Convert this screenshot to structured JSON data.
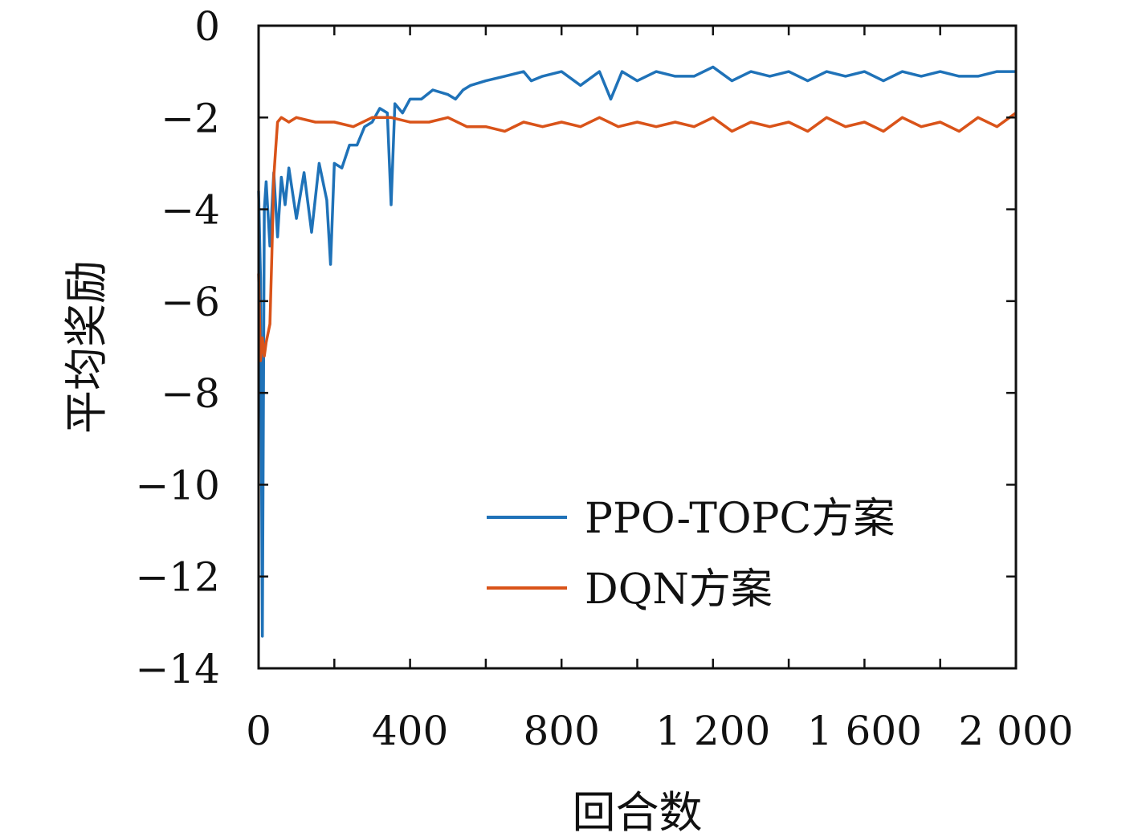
{
  "chart_data": {
    "type": "line",
    "title": "",
    "xlabel": "回合数",
    "ylabel": "平均奖励",
    "xlim": [
      0,
      2000
    ],
    "ylim": [
      -14,
      0
    ],
    "x_ticks": [
      0,
      400,
      800,
      1200,
      1600,
      2000
    ],
    "x_tick_labels": [
      "0",
      "400",
      "800",
      "1 200",
      "1 600",
      "2 000"
    ],
    "y_ticks": [
      0,
      -2,
      -4,
      -6,
      -8,
      -10,
      -12,
      -14
    ],
    "y_tick_labels": [
      "0",
      "−2",
      "−4",
      "−6",
      "−8",
      "−10",
      "−12",
      "−14"
    ],
    "grid": false,
    "legend_position": "lower-right",
    "series": [
      {
        "name": "PPO-TOPC方案",
        "color": "#1f72b8",
        "x": [
          0,
          5,
          10,
          15,
          20,
          30,
          40,
          50,
          60,
          70,
          80,
          100,
          120,
          140,
          160,
          180,
          190,
          200,
          220,
          240,
          260,
          280,
          300,
          320,
          340,
          350,
          360,
          380,
          400,
          430,
          460,
          500,
          520,
          540,
          560,
          600,
          650,
          700,
          720,
          750,
          800,
          850,
          900,
          930,
          960,
          1000,
          1050,
          1100,
          1150,
          1200,
          1250,
          1300,
          1350,
          1400,
          1450,
          1500,
          1550,
          1600,
          1650,
          1700,
          1750,
          1800,
          1850,
          1900,
          1950,
          2000
        ],
        "y": [
          -3.6,
          -5.5,
          -13.3,
          -4.0,
          -3.4,
          -4.8,
          -3.2,
          -4.6,
          -3.3,
          -3.9,
          -3.1,
          -4.2,
          -3.2,
          -4.5,
          -3.0,
          -3.8,
          -5.2,
          -3.0,
          -3.1,
          -2.6,
          -2.6,
          -2.2,
          -2.1,
          -1.8,
          -1.9,
          -3.9,
          -1.7,
          -1.9,
          -1.6,
          -1.6,
          -1.4,
          -1.5,
          -1.6,
          -1.4,
          -1.3,
          -1.2,
          -1.1,
          -1.0,
          -1.2,
          -1.1,
          -1.0,
          -1.3,
          -1.0,
          -1.6,
          -1.0,
          -1.2,
          -1.0,
          -1.1,
          -1.1,
          -0.9,
          -1.2,
          -1.0,
          -1.1,
          -1.0,
          -1.2,
          -1.0,
          -1.1,
          -1.0,
          -1.2,
          -1.0,
          -1.1,
          -1.0,
          -1.1,
          -1.1,
          -1.0,
          -1.0
        ]
      },
      {
        "name": "DQN方案",
        "color": "#d95319",
        "x": [
          0,
          5,
          10,
          15,
          20,
          30,
          35,
          40,
          45,
          50,
          60,
          80,
          100,
          150,
          200,
          250,
          300,
          350,
          400,
          450,
          500,
          550,
          600,
          650,
          700,
          750,
          800,
          850,
          900,
          950,
          1000,
          1050,
          1100,
          1150,
          1200,
          1250,
          1300,
          1350,
          1400,
          1450,
          1500,
          1550,
          1600,
          1650,
          1700,
          1750,
          1800,
          1850,
          1900,
          1950,
          2000
        ],
        "y": [
          -5.4,
          -7.3,
          -6.8,
          -7.2,
          -6.9,
          -6.5,
          -5.0,
          -3.3,
          -2.7,
          -2.1,
          -2.0,
          -2.1,
          -2.0,
          -2.1,
          -2.1,
          -2.2,
          -2.0,
          -2.0,
          -2.1,
          -2.1,
          -2.0,
          -2.2,
          -2.2,
          -2.3,
          -2.1,
          -2.2,
          -2.1,
          -2.2,
          -2.0,
          -2.2,
          -2.1,
          -2.2,
          -2.1,
          -2.2,
          -2.0,
          -2.3,
          -2.1,
          -2.2,
          -2.1,
          -2.3,
          -2.0,
          -2.2,
          -2.1,
          -2.3,
          -2.0,
          -2.2,
          -2.1,
          -2.3,
          -2.0,
          -2.2,
          -1.9
        ]
      }
    ]
  }
}
